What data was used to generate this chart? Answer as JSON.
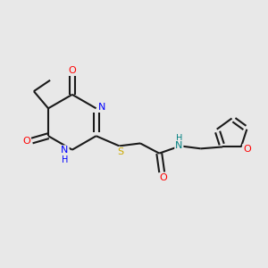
{
  "bg_color": "#e8e8e8",
  "bond_color": "#1a1a1a",
  "atom_colors": {
    "N": "#0000ff",
    "O": "#ff0000",
    "S": "#ccaa00",
    "NH_color": "#008080"
  },
  "figsize": [
    3.0,
    3.0
  ],
  "dpi": 100,
  "xlim": [
    0,
    10
  ],
  "ylim": [
    0,
    10
  ]
}
